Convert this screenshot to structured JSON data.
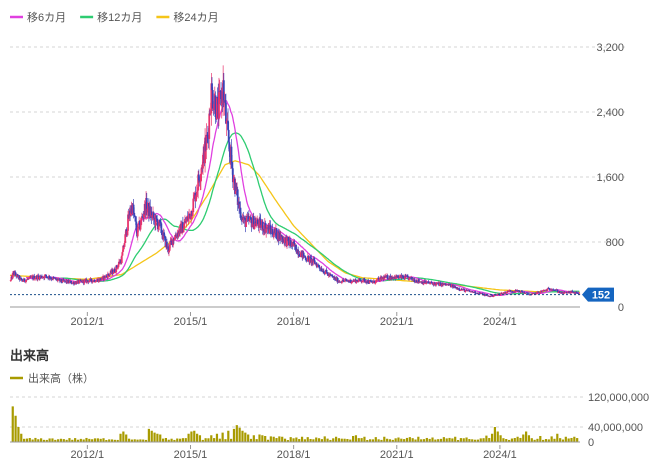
{
  "chart_data": [
    {
      "type": "candlestick",
      "legend": [
        {
          "name": "移6カ月",
          "color": "#e040e0"
        },
        {
          "name": "移12カ月",
          "color": "#2ecc71"
        },
        {
          "name": "移24カ月",
          "color": "#f5c518"
        }
      ],
      "y_ticks": [
        {
          "value": 0,
          "label": "0"
        },
        {
          "value": 800,
          "label": "800"
        },
        {
          "value": 1600,
          "label": "1,600"
        },
        {
          "value": 2400,
          "label": "2,400"
        },
        {
          "value": 3200,
          "label": "3,200"
        }
      ],
      "ylim": [
        0,
        3200
      ],
      "x_range": [
        2009.75,
        2026.33
      ],
      "x_ticks": [
        {
          "value": 2012.0,
          "label": "2012/1"
        },
        {
          "value": 2015.0,
          "label": "2015/1"
        },
        {
          "value": 2018.0,
          "label": "2018/1"
        },
        {
          "value": 2021.0,
          "label": "2021/1"
        },
        {
          "value": 2024.0,
          "label": "2024/1"
        }
      ],
      "current_price": {
        "value": 152,
        "label": "152"
      },
      "price_anchors": [
        [
          2009.75,
          300
        ],
        [
          2009.85,
          420
        ],
        [
          2010.1,
          320
        ],
        [
          2010.4,
          360
        ],
        [
          2010.8,
          380
        ],
        [
          2011.2,
          320
        ],
        [
          2011.6,
          300
        ],
        [
          2012.0,
          320
        ],
        [
          2012.4,
          340
        ],
        [
          2012.8,
          450
        ],
        [
          2013.0,
          600
        ],
        [
          2013.2,
          1100
        ],
        [
          2013.3,
          1250
        ],
        [
          2013.45,
          900
        ],
        [
          2013.7,
          1250
        ],
        [
          2013.9,
          1100
        ],
        [
          2014.1,
          1000
        ],
        [
          2014.35,
          700
        ],
        [
          2014.5,
          850
        ],
        [
          2014.8,
          1000
        ],
        [
          2015.0,
          1150
        ],
        [
          2015.15,
          1400
        ],
        [
          2015.3,
          1700
        ],
        [
          2015.5,
          2100
        ],
        [
          2015.6,
          2650
        ],
        [
          2015.7,
          2550
        ],
        [
          2015.8,
          2400
        ],
        [
          2015.95,
          2700
        ],
        [
          2016.05,
          2200
        ],
        [
          2016.25,
          1600
        ],
        [
          2016.4,
          1250
        ],
        [
          2016.55,
          1050
        ],
        [
          2016.8,
          1050
        ],
        [
          2017.1,
          1000
        ],
        [
          2017.5,
          900
        ],
        [
          2018.0,
          750
        ],
        [
          2018.3,
          620
        ],
        [
          2018.6,
          550
        ],
        [
          2019.0,
          400
        ],
        [
          2019.3,
          320
        ],
        [
          2019.7,
          320
        ],
        [
          2020.0,
          330
        ],
        [
          2020.3,
          300
        ],
        [
          2020.6,
          360
        ],
        [
          2020.9,
          370
        ],
        [
          2021.3,
          360
        ],
        [
          2021.7,
          310
        ],
        [
          2022.0,
          290
        ],
        [
          2022.5,
          270
        ],
        [
          2023.0,
          200
        ],
        [
          2023.4,
          170
        ],
        [
          2023.7,
          130
        ],
        [
          2024.0,
          160
        ],
        [
          2024.3,
          200
        ],
        [
          2024.6,
          190
        ],
        [
          2024.9,
          150
        ],
        [
          2025.2,
          190
        ],
        [
          2025.5,
          230
        ],
        [
          2025.8,
          170
        ],
        [
          2026.1,
          185
        ],
        [
          2026.33,
          152
        ]
      ],
      "ma24_anchors": [
        [
          2009.75,
          390
        ],
        [
          2011.0,
          360
        ],
        [
          2012.0,
          340
        ],
        [
          2013.0,
          400
        ],
        [
          2014.0,
          660
        ],
        [
          2014.6,
          860
        ],
        [
          2015.0,
          1050
        ],
        [
          2015.5,
          1380
        ],
        [
          2016.0,
          1750
        ],
        [
          2016.3,
          1800
        ],
        [
          2016.7,
          1750
        ],
        [
          2017.0,
          1620
        ],
        [
          2017.5,
          1300
        ],
        [
          2018.0,
          1000
        ],
        [
          2018.5,
          780
        ],
        [
          2019.0,
          560
        ],
        [
          2019.5,
          420
        ],
        [
          2020.0,
          360
        ],
        [
          2021.0,
          330
        ],
        [
          2022.0,
          300
        ],
        [
          2023.0,
          260
        ],
        [
          2024.0,
          210
        ],
        [
          2025.0,
          190
        ],
        [
          2026.33,
          180
        ]
      ]
    },
    {
      "type": "bar",
      "title": "出来高",
      "legend": [
        {
          "name": "出来高（株）",
          "color": "#a89b00"
        }
      ],
      "y_ticks": [
        {
          "value": 0,
          "label": "0"
        },
        {
          "value": 40000000,
          "label": "40,000,000"
        },
        {
          "value": 120000000,
          "label": "120,000,000"
        }
      ],
      "ylim": [
        0,
        120000000
      ],
      "bar_count": 200,
      "bar_start": 2009.83,
      "bar_step": 0.0825,
      "spikes": [
        [
          0,
          95000000
        ],
        [
          1,
          70000000
        ],
        [
          2,
          40000000
        ],
        [
          3,
          22000000
        ],
        [
          38,
          22000000
        ],
        [
          39,
          28000000
        ],
        [
          40,
          20000000
        ],
        [
          48,
          35000000
        ],
        [
          49,
          30000000
        ],
        [
          50,
          25000000
        ],
        [
          51,
          22000000
        ],
        [
          52,
          20000000
        ],
        [
          62,
          22000000
        ],
        [
          63,
          28000000
        ],
        [
          64,
          30000000
        ],
        [
          65,
          22000000
        ],
        [
          66,
          18000000
        ],
        [
          70,
          18000000
        ],
        [
          72,
          22000000
        ],
        [
          74,
          25000000
        ],
        [
          76,
          30000000
        ],
        [
          78,
          35000000
        ],
        [
          79,
          45000000
        ],
        [
          80,
          38000000
        ],
        [
          81,
          30000000
        ],
        [
          82,
          25000000
        ],
        [
          83,
          20000000
        ],
        [
          85,
          18000000
        ],
        [
          87,
          20000000
        ],
        [
          88,
          18000000
        ],
        [
          89,
          16000000
        ],
        [
          91,
          15000000
        ],
        [
          92,
          14000000
        ],
        [
          94,
          15000000
        ],
        [
          95,
          14000000
        ],
        [
          98,
          13000000
        ],
        [
          100,
          12000000
        ],
        [
          102,
          14000000
        ],
        [
          104,
          13000000
        ],
        [
          107,
          12000000
        ],
        [
          110,
          15000000
        ],
        [
          114,
          14000000
        ],
        [
          120,
          16000000
        ],
        [
          121,
          18000000
        ],
        [
          124,
          14000000
        ],
        [
          128,
          13000000
        ],
        [
          131,
          14000000
        ],
        [
          136,
          12000000
        ],
        [
          140,
          13000000
        ],
        [
          143,
          14000000
        ],
        [
          148,
          12000000
        ],
        [
          152,
          13000000
        ],
        [
          156,
          14000000
        ],
        [
          160,
          12000000
        ],
        [
          167,
          17000000
        ],
        [
          169,
          22000000
        ],
        [
          170,
          40000000
        ],
        [
          171,
          28000000
        ],
        [
          172,
          18000000
        ],
        [
          178,
          14000000
        ],
        [
          180,
          20000000
        ],
        [
          181,
          28000000
        ],
        [
          182,
          18000000
        ],
        [
          186,
          16000000
        ],
        [
          190,
          15000000
        ],
        [
          192,
          22000000
        ],
        [
          195,
          14000000
        ],
        [
          198,
          14000000
        ]
      ]
    }
  ]
}
